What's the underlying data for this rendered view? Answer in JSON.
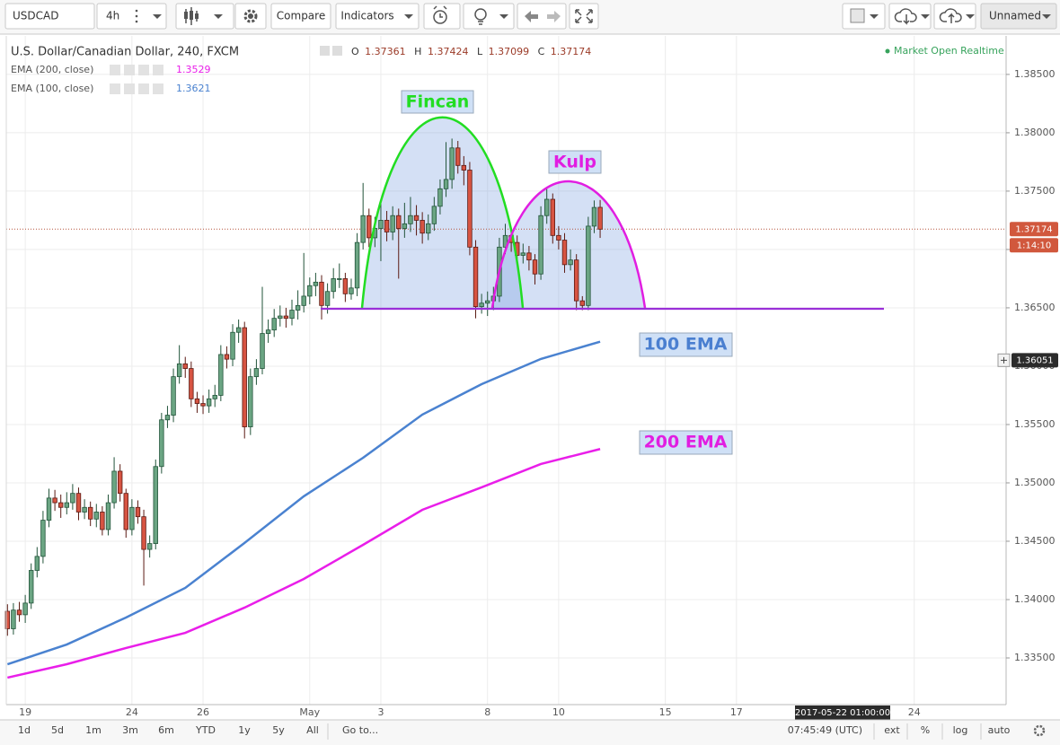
{
  "toolbar": {
    "symbol": "USDCAD",
    "interval": "4h",
    "buttons": [
      "Compare",
      "Indicators"
    ],
    "layout": "Unnamed"
  },
  "chart_data": {
    "type": "candlestick",
    "title": "U.S. Dollar/Canadian Dollar, 240, FXCM",
    "ohlc_labels": [
      "O",
      "H",
      "L",
      "C"
    ],
    "status": "Market Open Realtime",
    "up_color": "#6ba583",
    "down_color": "#d75442",
    "open": [
      1.339,
      1.3375,
      1.3391,
      1.3387,
      1.3397,
      1.3425,
      1.3437,
      1.3468,
      1.3487,
      1.3483,
      1.3479,
      1.3483,
      1.3491,
      1.3475,
      1.3479,
      1.3469,
      1.3475,
      1.346,
      1.3483,
      1.351,
      1.3491,
      1.346,
      1.3479,
      1.3471,
      1.3443,
      1.3448,
      1.3514,
      1.3554,
      1.3558,
      1.3591,
      1.3602,
      1.3598,
      1.3572,
      1.3568,
      1.3566,
      1.3572,
      1.3575,
      1.361,
      1.3606,
      1.3629,
      1.3633,
      1.3548,
      1.3591,
      1.3598,
      1.3628,
      1.3631,
      1.3641,
      1.3643,
      1.3641,
      1.3648,
      1.3652,
      1.366,
      1.3669,
      1.3672,
      1.3652,
      1.3664,
      1.3675,
      1.3675,
      1.3662,
      1.3667,
      1.3706,
      1.3729,
      1.371,
      1.3718,
      1.3725,
      1.3715,
      1.3729,
      1.3718,
      1.3722,
      1.3729,
      1.3725,
      1.3714,
      1.3722,
      1.3737,
      1.3752,
      1.376,
      1.3787,
      1.3772,
      1.3768,
      1.3702,
      1.3651,
      1.3654,
      1.3656,
      1.366,
      1.3702,
      1.3712,
      1.3706,
      1.3695,
      1.3697,
      1.3691,
      1.3679,
      1.3729,
      1.3743,
      1.3712,
      1.3708,
      1.3687,
      1.3691,
      1.3656,
      1.3652,
      1.372,
      1.37361
    ],
    "high": [
      1.3396,
      1.3397,
      1.3398,
      1.3404,
      1.3431,
      1.3445,
      1.3476,
      1.3495,
      1.3494,
      1.349,
      1.3492,
      1.3499,
      1.3496,
      1.3486,
      1.3484,
      1.3482,
      1.348,
      1.349,
      1.3522,
      1.3516,
      1.3495,
      1.3486,
      1.3485,
      1.3477,
      1.3455,
      1.352,
      1.356,
      1.3566,
      1.3598,
      1.3618,
      1.3608,
      1.3604,
      1.3578,
      1.3575,
      1.358,
      1.3584,
      1.3618,
      1.3617,
      1.3636,
      1.364,
      1.3638,
      1.3598,
      1.3606,
      1.3668,
      1.364,
      1.3649,
      1.3652,
      1.365,
      1.3657,
      1.3665,
      1.3697,
      1.3676,
      1.368,
      1.3678,
      1.3671,
      1.3684,
      1.3688,
      1.368,
      1.3675,
      1.3714,
      1.3757,
      1.3735,
      1.3728,
      1.374,
      1.3733,
      1.3737,
      1.3735,
      1.374,
      1.3745,
      1.3738,
      1.3732,
      1.373,
      1.3745,
      1.376,
      1.3792,
      1.3795,
      1.3793,
      1.378,
      1.3775,
      1.3708,
      1.3662,
      1.3664,
      1.3668,
      1.371,
      1.3722,
      1.3718,
      1.3712,
      1.3705,
      1.3703,
      1.3696,
      1.3737,
      1.3752,
      1.3748,
      1.372,
      1.3714,
      1.37,
      1.3696,
      1.366,
      1.3728,
      1.3742,
      1.37424
    ],
    "low": [
      1.3369,
      1.337,
      1.3381,
      1.338,
      1.3392,
      1.3419,
      1.3431,
      1.3462,
      1.3476,
      1.347,
      1.3473,
      1.3477,
      1.3468,
      1.3469,
      1.3463,
      1.3462,
      1.3455,
      1.3455,
      1.3478,
      1.3484,
      1.3453,
      1.3455,
      1.3465,
      1.3412,
      1.3436,
      1.3443,
      1.3508,
      1.3547,
      1.3552,
      1.3585,
      1.359,
      1.3565,
      1.356,
      1.3559,
      1.356,
      1.3565,
      1.357,
      1.3598,
      1.36,
      1.362,
      1.3538,
      1.3541,
      1.3584,
      1.3593,
      1.362,
      1.3625,
      1.3634,
      1.3633,
      1.3635,
      1.364,
      1.3646,
      1.3653,
      1.366,
      1.364,
      1.3645,
      1.3658,
      1.3667,
      1.3655,
      1.3657,
      1.366,
      1.37,
      1.3702,
      1.3702,
      1.369,
      1.3707,
      1.3708,
      1.3675,
      1.371,
      1.3715,
      1.3712,
      1.3705,
      1.3708,
      1.3716,
      1.373,
      1.3745,
      1.3752,
      1.3765,
      1.3755,
      1.3695,
      1.3641,
      1.3645,
      1.3643,
      1.3648,
      1.3655,
      1.3696,
      1.3698,
      1.3688,
      1.3688,
      1.3682,
      1.367,
      1.3674,
      1.3722,
      1.3705,
      1.37,
      1.368,
      1.3682,
      1.3648,
      1.3648,
      1.3648,
      1.3714,
      1.37099
    ],
    "close": [
      1.3375,
      1.3391,
      1.3387,
      1.3397,
      1.3425,
      1.3437,
      1.3468,
      1.3487,
      1.3483,
      1.3479,
      1.3483,
      1.3491,
      1.3475,
      1.3479,
      1.3469,
      1.3475,
      1.346,
      1.3483,
      1.351,
      1.3491,
      1.346,
      1.3479,
      1.3471,
      1.3443,
      1.3448,
      1.3514,
      1.3554,
      1.3558,
      1.3591,
      1.3602,
      1.3598,
      1.3572,
      1.3568,
      1.3566,
      1.3572,
      1.3575,
      1.361,
      1.3606,
      1.3629,
      1.3633,
      1.3548,
      1.3591,
      1.3598,
      1.3628,
      1.3631,
      1.3641,
      1.3643,
      1.3641,
      1.3648,
      1.3652,
      1.366,
      1.3669,
      1.3672,
      1.3652,
      1.3664,
      1.3675,
      1.3675,
      1.3662,
      1.3667,
      1.3706,
      1.3729,
      1.371,
      1.3718,
      1.3725,
      1.3715,
      1.3729,
      1.3718,
      1.3722,
      1.3729,
      1.3725,
      1.3714,
      1.3722,
      1.3737,
      1.3752,
      1.376,
      1.3787,
      1.3772,
      1.3768,
      1.3702,
      1.3651,
      1.3654,
      1.3656,
      1.366,
      1.3702,
      1.3712,
      1.3706,
      1.3695,
      1.3697,
      1.3691,
      1.3679,
      1.3729,
      1.3743,
      1.3712,
      1.3708,
      1.3687,
      1.3691,
      1.3656,
      1.3652,
      1.372,
      1.3736,
      1.37174
    ],
    "series": [
      {
        "name": "EMA (200, close)",
        "color": "#e91ee9",
        "x": [
          0,
          10,
          20,
          30,
          40,
          50,
          60,
          70,
          80,
          90,
          100
        ],
        "values": [
          1.33331,
          1.33446,
          1.33585,
          1.33715,
          1.33931,
          1.34177,
          1.34469,
          1.34769,
          1.34962,
          1.35162,
          1.3529
        ]
      },
      {
        "name": "EMA (100, close)",
        "color": "#4a82d0",
        "x": [
          0,
          10,
          20,
          30,
          40,
          50,
          60,
          70,
          80,
          90,
          100
        ],
        "values": [
          1.33446,
          1.33615,
          1.33846,
          1.341,
          1.34485,
          1.34885,
          1.35215,
          1.35585,
          1.35846,
          1.36062,
          1.3621
        ]
      }
    ],
    "annotations": [
      "Fincan",
      "Kulp",
      "100 EMA",
      "200 EMA"
    ],
    "countdown": "1:14:10",
    "crosshair": {
      "price": 1.36051,
      "time": "2017-05-22 01:00:00"
    },
    "xlim": [
      -0.2,
      168.5
    ],
    "xticks": [
      {
        "value": 3,
        "label": "19"
      },
      {
        "value": 21,
        "label": "24"
      },
      {
        "value": 33,
        "label": "26"
      },
      {
        "value": 51,
        "label": "May"
      },
      {
        "value": 63,
        "label": "3"
      },
      {
        "value": 81,
        "label": "8"
      },
      {
        "value": 93,
        "label": "10"
      },
      {
        "value": 111,
        "label": "15"
      },
      {
        "value": 123,
        "label": "17"
      },
      {
        "value": 153,
        "label": "24"
      }
    ],
    "ylim": [
      1.331,
      1.3883
    ],
    "yticks": [
      {
        "value": 1.335,
        "label": "1.33500"
      },
      {
        "value": 1.34,
        "label": "1.34000"
      },
      {
        "value": 1.345,
        "label": "1.34500"
      },
      {
        "value": 1.35,
        "label": "1.35000"
      },
      {
        "value": 1.355,
        "label": "1.35500"
      },
      {
        "value": 1.36,
        "label": "1.36000"
      },
      {
        "value": 1.365,
        "label": "1.36500"
      },
      {
        "value": 1.37,
        "label": "1.37000"
      },
      {
        "value": 1.375,
        "label": "1.37500"
      },
      {
        "value": 1.38,
        "label": "1.38000"
      },
      {
        "value": 1.385,
        "label": "1.38500"
      }
    ],
    "grid": true
  },
  "bottom_bar": {
    "ranges": [
      "1d",
      "5d",
      "1m",
      "3m",
      "6m",
      "YTD",
      "1y",
      "5y",
      "All"
    ],
    "goto": "Go to...",
    "clock": "07:45:49 (UTC)",
    "options": [
      "ext",
      "%",
      "log",
      "auto"
    ]
  }
}
